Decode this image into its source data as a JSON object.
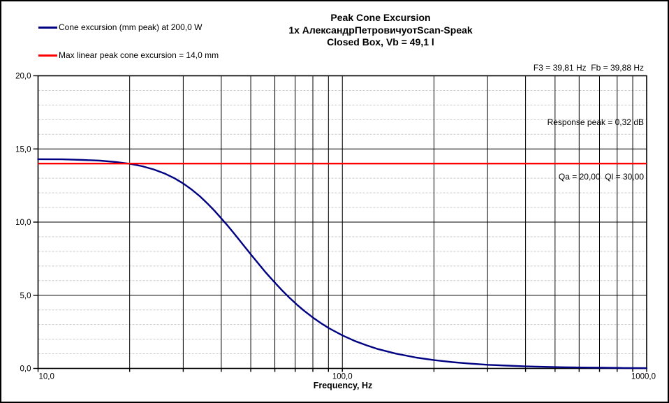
{
  "window": {
    "background": "#ffffff",
    "border_color": "#000000"
  },
  "title": {
    "lines": [
      "Peak Cone Excursion",
      "1x АлександрПетровичуотScan-Speak",
      "Closed Box, Vb = 49,1 l"
    ]
  },
  "params": {
    "lines": [
      "F3 = 39,81 Hz  Fb = 39,88 Hz",
      "Response peak = 0,32 dB",
      "Qa = 20,00  Ql = 30,00"
    ]
  },
  "legend": {
    "items": [
      {
        "label": "Cone excursion (mm peak) at 200,0 W",
        "color": "#000082"
      },
      {
        "label": "Max linear peak cone excursion = 14,0 mm",
        "color": "#ff0000"
      }
    ]
  },
  "chart_data": {
    "type": "line",
    "title": "Peak Cone Excursion",
    "subtitle": "1x АлександрПетровичуотScan-Speak — Closed Box, Vb = 49,1 l",
    "xlabel": "Frequency, Hz",
    "ylabel": "",
    "x_scale": "log",
    "xlim": [
      10,
      1000
    ],
    "ylim": [
      0,
      20
    ],
    "grid": true,
    "legend_position": "top-left",
    "x_major_ticks": [
      {
        "v": 10,
        "label": "10,0",
        "anchor": "start"
      },
      {
        "v": 100,
        "label": "100,0",
        "anchor": "middle"
      },
      {
        "v": 1000,
        "label": "1000,0",
        "anchor": "end"
      }
    ],
    "x_gridlines": [
      20,
      30,
      40,
      50,
      60,
      70,
      80,
      90,
      100,
      200,
      300,
      400,
      500,
      600,
      700,
      800,
      900
    ],
    "y_major_ticks": [
      {
        "v": 0,
        "label": "0,0"
      },
      {
        "v": 5,
        "label": "5,0"
      },
      {
        "v": 10,
        "label": "10,0"
      },
      {
        "v": 15,
        "label": "15,0"
      },
      {
        "v": 20,
        "label": "20,0"
      }
    ],
    "y_minor_step": 1,
    "annotations": {
      "F3_Hz": "39,81",
      "Fb_Hz": "39,88",
      "response_peak_dB": "0,32",
      "Qa": "20,00",
      "Ql": "30,00"
    },
    "series": [
      {
        "name": "Cone excursion (mm peak) at 200,0 W",
        "type": "curve",
        "color": "#000082",
        "points": [
          [
            10,
            14.3
          ],
          [
            12,
            14.29
          ],
          [
            14,
            14.25
          ],
          [
            16,
            14.2
          ],
          [
            18,
            14.11
          ],
          [
            20,
            13.99
          ],
          [
            22,
            13.82
          ],
          [
            24,
            13.6
          ],
          [
            26,
            13.33
          ],
          [
            28,
            13.01
          ],
          [
            30,
            12.64
          ],
          [
            32,
            12.22
          ],
          [
            34,
            11.77
          ],
          [
            36,
            11.28
          ],
          [
            38,
            10.78
          ],
          [
            40,
            10.26
          ],
          [
            42,
            9.75
          ],
          [
            44,
            9.24
          ],
          [
            46,
            8.74
          ],
          [
            48,
            8.26
          ],
          [
            50,
            7.8
          ],
          [
            53,
            7.16
          ],
          [
            56,
            6.56
          ],
          [
            60,
            5.86
          ],
          [
            63,
            5.39
          ],
          [
            67,
            4.83
          ],
          [
            71,
            4.35
          ],
          [
            75,
            3.93
          ],
          [
            80,
            3.48
          ],
          [
            85,
            3.1
          ],
          [
            90,
            2.77
          ],
          [
            100,
            2.26
          ],
          [
            110,
            1.87
          ],
          [
            120,
            1.58
          ],
          [
            130,
            1.34
          ],
          [
            150,
            1.01
          ],
          [
            175,
            0.74
          ],
          [
            200,
            0.57
          ],
          [
            230,
            0.43
          ],
          [
            260,
            0.34
          ],
          [
            300,
            0.25
          ],
          [
            350,
            0.19
          ],
          [
            400,
            0.14
          ],
          [
            460,
            0.11
          ],
          [
            530,
            0.08
          ],
          [
            620,
            0.06
          ],
          [
            720,
            0.05
          ],
          [
            840,
            0.03
          ],
          [
            1000,
            0.02
          ]
        ]
      },
      {
        "name": "Max linear peak cone excursion = 14,0 mm",
        "type": "hline",
        "color": "#ff0000",
        "y": 14.0
      }
    ]
  }
}
